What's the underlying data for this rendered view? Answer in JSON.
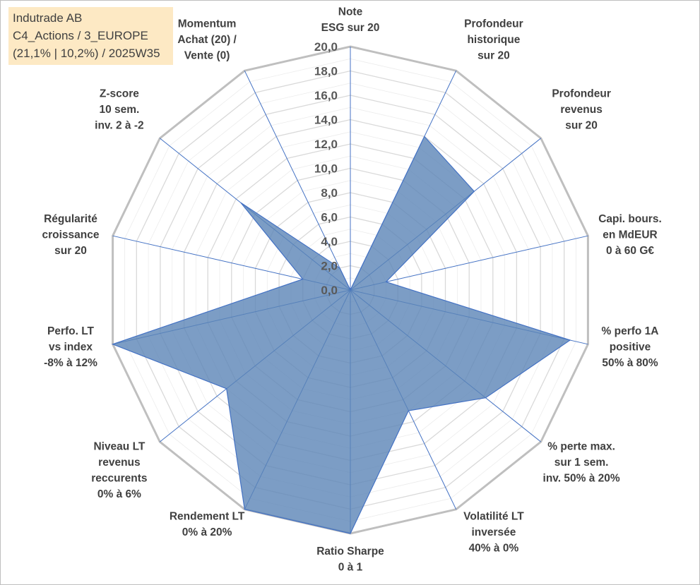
{
  "info": {
    "line1": "Indutrade AB",
    "line2": "C4_Actions / 3_EUROPE",
    "line3": "(21,1% | 10,2%) / 2025W35"
  },
  "colors": {
    "fill": "#5b85b6",
    "stroke": "#4472c4",
    "outer_ring": "#bfbfbf",
    "inner_ring": "#d9d9d9",
    "spoke": "#4472c4",
    "info_background": "#fde9c4"
  },
  "chart_data": {
    "type": "radar",
    "rmin": 0,
    "rmax": 20,
    "tick_step": 2,
    "ticks": [
      "0,0",
      "2,0",
      "4,0",
      "6,0",
      "8,0",
      "10,0",
      "12,0",
      "14,0",
      "16,0",
      "18,0",
      "20,0"
    ],
    "axes": [
      {
        "label": [
          "Note",
          "ESG sur 20"
        ],
        "value": 0
      },
      {
        "label": [
          "Profondeur",
          "historique",
          "sur 20"
        ],
        "value": 14
      },
      {
        "label": [
          "Profondeur",
          "revenus",
          "sur 20"
        ],
        "value": 13
      },
      {
        "label": [
          "Capi. bours.",
          "en MdEUR",
          "0 à 60 G€"
        ],
        "value": 3
      },
      {
        "label": [
          "% perfo 1A",
          "positive",
          "50% à 80%"
        ],
        "value": 18.5
      },
      {
        "label": [
          "% perte max.",
          "sur 1 sem.",
          "inv. 50% à 20%"
        ],
        "value": 14.2
      },
      {
        "label": [
          "Volatilité LT",
          "inversée",
          "40% à 0%"
        ],
        "value": 11
      },
      {
        "label": [
          "Ratio Sharpe",
          "0 à 1"
        ],
        "value": 20
      },
      {
        "label": [
          "Rendement LT",
          "0% à 20%"
        ],
        "value": 20
      },
      {
        "label": [
          "Niveau LT",
          "revenus",
          "reccurents",
          "0% à 6%"
        ],
        "value": 13
      },
      {
        "label": [
          "Perfo. LT",
          "vs index",
          "-8% à 12%"
        ],
        "value": 20
      },
      {
        "label": [
          "Régularité",
          "croissance",
          "sur 20"
        ],
        "value": 4
      },
      {
        "label": [
          "Z-score",
          "10 sem.",
          "inv. 2 à -2"
        ],
        "value": 11.5
      },
      {
        "label": [
          "Momentum",
          "Achat (20) /",
          "Vente (0)"
        ],
        "value": 2
      }
    ]
  }
}
